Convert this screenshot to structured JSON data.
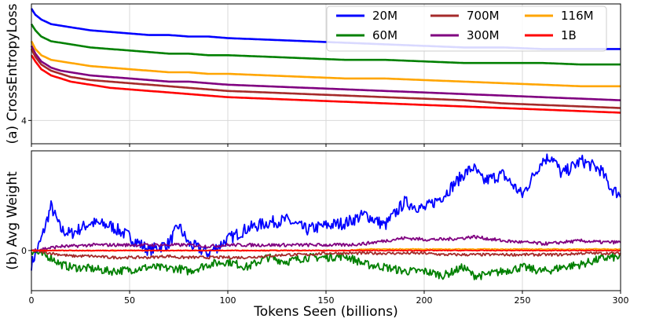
{
  "chart_data": [
    {
      "type": "line",
      "panel": "top",
      "ylabel": "(a) CrossEntropyLoss",
      "ytick_labels": [
        {
          "value": 4,
          "label": "4"
        }
      ],
      "ylim": [
        3.85,
        4.75
      ],
      "xlim": [
        0,
        300
      ],
      "grid": true,
      "legend_position": "top-right",
      "x": [
        0,
        2,
        5,
        10,
        15,
        20,
        30,
        40,
        50,
        60,
        70,
        80,
        90,
        100,
        120,
        140,
        160,
        180,
        200,
        220,
        240,
        260,
        280,
        300
      ],
      "series": [
        {
          "name": "20M",
          "color": "#0000ff",
          "values": [
            4.72,
            4.68,
            4.65,
            4.62,
            4.61,
            4.6,
            4.58,
            4.57,
            4.56,
            4.55,
            4.55,
            4.54,
            4.54,
            4.53,
            4.52,
            4.51,
            4.5,
            4.49,
            4.48,
            4.47,
            4.47,
            4.46,
            4.46,
            4.46
          ]
        },
        {
          "name": "60M",
          "color": "#008000",
          "values": [
            4.62,
            4.58,
            4.54,
            4.51,
            4.5,
            4.49,
            4.47,
            4.46,
            4.45,
            4.44,
            4.43,
            4.43,
            4.42,
            4.42,
            4.41,
            4.4,
            4.39,
            4.39,
            4.38,
            4.37,
            4.37,
            4.37,
            4.36,
            4.36
          ]
        },
        {
          "name": "116M",
          "color": "#ffa500",
          "values": [
            4.51,
            4.46,
            4.42,
            4.39,
            4.38,
            4.37,
            4.35,
            4.34,
            4.33,
            4.32,
            4.31,
            4.31,
            4.3,
            4.3,
            4.29,
            4.28,
            4.27,
            4.27,
            4.26,
            4.25,
            4.24,
            4.23,
            4.22,
            4.22
          ]
        },
        {
          "name": "300M",
          "color": "#800080",
          "values": [
            4.48,
            4.43,
            4.38,
            4.34,
            4.32,
            4.31,
            4.29,
            4.28,
            4.27,
            4.26,
            4.25,
            4.25,
            4.24,
            4.23,
            4.22,
            4.21,
            4.2,
            4.19,
            4.18,
            4.17,
            4.16,
            4.15,
            4.14,
            4.13
          ]
        },
        {
          "name": "700M",
          "color": "#a52a2a",
          "values": [
            4.46,
            4.41,
            4.36,
            4.32,
            4.3,
            4.28,
            4.26,
            4.25,
            4.24,
            4.23,
            4.22,
            4.21,
            4.2,
            4.19,
            4.18,
            4.17,
            4.16,
            4.15,
            4.14,
            4.13,
            4.11,
            4.1,
            4.09,
            4.08
          ]
        },
        {
          "name": "1B",
          "color": "#ff0000",
          "values": [
            4.42,
            4.38,
            4.33,
            4.29,
            4.27,
            4.25,
            4.23,
            4.21,
            4.2,
            4.19,
            4.18,
            4.17,
            4.16,
            4.15,
            4.14,
            4.13,
            4.12,
            4.11,
            4.1,
            4.09,
            4.08,
            4.07,
            4.06,
            4.05
          ]
        }
      ]
    },
    {
      "type": "line",
      "panel": "bottom",
      "ylabel": "(b) Avg Weight",
      "xlabel": "Tokens Seen (billions)",
      "ytick_labels": [
        {
          "value": 0,
          "label": "0"
        }
      ],
      "ylim": [
        -0.29,
        0.72
      ],
      "xlim": [
        0,
        300
      ],
      "xticks": [
        0,
        50,
        100,
        150,
        200,
        250,
        300
      ],
      "grid": true,
      "x": [
        0,
        5,
        10,
        15,
        20,
        30,
        40,
        50,
        60,
        70,
        75,
        80,
        90,
        100,
        110,
        120,
        130,
        140,
        150,
        160,
        170,
        180,
        190,
        200,
        210,
        220,
        225,
        230,
        240,
        250,
        260,
        265,
        270,
        280,
        290,
        295,
        300
      ],
      "series": [
        {
          "name": "20M",
          "color": "#0000ff",
          "values": [
            -0.1,
            0.08,
            0.32,
            0.15,
            0.12,
            0.2,
            0.18,
            0.1,
            0.0,
            0.05,
            0.18,
            0.05,
            -0.02,
            0.08,
            0.16,
            0.2,
            0.22,
            0.15,
            0.18,
            0.2,
            0.26,
            0.18,
            0.35,
            0.3,
            0.4,
            0.55,
            0.6,
            0.5,
            0.55,
            0.4,
            0.65,
            0.68,
            0.55,
            0.65,
            0.58,
            0.45,
            0.4
          ]
        },
        {
          "name": "60M",
          "color": "#008000",
          "values": [
            0.0,
            -0.03,
            -0.05,
            -0.1,
            -0.12,
            -0.13,
            -0.15,
            -0.14,
            -0.12,
            -0.13,
            -0.13,
            -0.15,
            -0.1,
            -0.08,
            -0.12,
            -0.05,
            -0.08,
            -0.05,
            -0.05,
            -0.04,
            -0.1,
            -0.12,
            -0.15,
            -0.15,
            -0.18,
            -0.12,
            -0.18,
            -0.18,
            -0.15,
            -0.12,
            -0.15,
            -0.14,
            -0.12,
            -0.1,
            -0.06,
            -0.05,
            -0.05
          ]
        },
        {
          "name": "700M",
          "color": "#a52a2a",
          "values": [
            0.0,
            -0.01,
            -0.02,
            -0.03,
            -0.04,
            -0.04,
            -0.05,
            -0.05,
            -0.05,
            -0.04,
            -0.05,
            -0.05,
            -0.05,
            -0.05,
            -0.05,
            -0.04,
            -0.03,
            -0.03,
            -0.02,
            -0.02,
            -0.02,
            -0.02,
            -0.02,
            -0.02,
            -0.03,
            -0.03,
            -0.03,
            -0.03,
            -0.03,
            -0.03,
            -0.03,
            -0.03,
            -0.03,
            -0.02,
            -0.02,
            -0.02,
            -0.02
          ]
        },
        {
          "name": "300M",
          "color": "#800080",
          "values": [
            0.0,
            0.01,
            0.02,
            0.03,
            0.03,
            0.04,
            0.04,
            0.04,
            0.04,
            0.04,
            0.04,
            0.04,
            0.03,
            0.04,
            0.04,
            0.04,
            0.04,
            0.04,
            0.04,
            0.04,
            0.05,
            0.07,
            0.09,
            0.08,
            0.08,
            0.09,
            0.1,
            0.09,
            0.07,
            0.06,
            0.05,
            0.05,
            0.06,
            0.07,
            0.06,
            0.06,
            0.06
          ]
        },
        {
          "name": "116M",
          "color": "#ffa500",
          "values": [
            0.0,
            0.0,
            0.0,
            0.0,
            0.0,
            0.0,
            0.0,
            0.0,
            0.0,
            0.0,
            0.0,
            0.0,
            0.0,
            0.0,
            0.0,
            0.0,
            0.0,
            0.0,
            0.0,
            0.0,
            0.01,
            0.01,
            0.01,
            0.01,
            0.01,
            0.01,
            0.01,
            0.01,
            0.01,
            0.01,
            0.01,
            0.01,
            0.01,
            0.01,
            0.01,
            0.01,
            0.01
          ]
        },
        {
          "name": "1B",
          "color": "#ff0000",
          "values": [
            0.0,
            0.0,
            0.0,
            0.0,
            0.0,
            0.0,
            0.0,
            0.0,
            0.0,
            0.0,
            0.0,
            0.0,
            0.0,
            0.0,
            0.0,
            0.0,
            0.0,
            0.0,
            0.0,
            0.0,
            0.0,
            0.0,
            0.0,
            0.0,
            0.0,
            0.0,
            0.0,
            0.0,
            0.0,
            0.0,
            0.0,
            0.0,
            0.0,
            0.0,
            0.0,
            0.0,
            0.0
          ]
        }
      ]
    }
  ],
  "legend": {
    "entries": [
      {
        "label": "20M",
        "color": "#0000ff"
      },
      {
        "label": "700M",
        "color": "#a52a2a"
      },
      {
        "label": "116M",
        "color": "#ffa500"
      },
      {
        "label": "60M",
        "color": "#008000"
      },
      {
        "label": "300M",
        "color": "#800080"
      },
      {
        "label": "1B",
        "color": "#ff0000"
      }
    ]
  }
}
